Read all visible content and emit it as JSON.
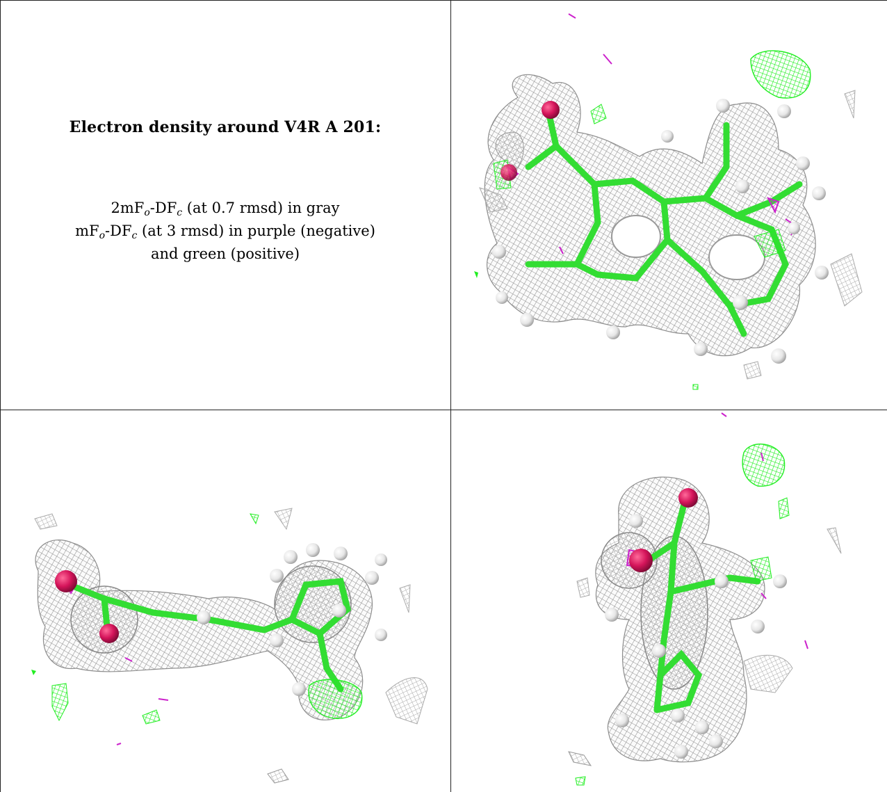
{
  "caption": {
    "title": "Electron density around V4R A 201:",
    "line1": {
      "pre": "2mF",
      "sub1": "o",
      "mid": "-DF",
      "sub2": "c",
      "post": " (at 0.7 rmsd) in gray"
    },
    "line2": {
      "pre": "mF",
      "sub1": "o",
      "mid": "-DF",
      "sub2": "c",
      "post": " (at 3 rmsd) in purple (negative)"
    },
    "line3": "and green (positive)"
  },
  "colors": {
    "mesh_gray": "#9a9a9a",
    "mesh_green": "#22ee22",
    "mesh_purple": "#cc22cc",
    "oxygen": "#d4145a",
    "hydrogen": "#f0f0f0",
    "bond": "#33dd33",
    "grid_line": "#222222"
  },
  "panels": [
    {
      "name": "top-right-view",
      "orientation": "front"
    },
    {
      "name": "bottom-left-view",
      "orientation": "side"
    },
    {
      "name": "bottom-right-view",
      "orientation": "end"
    }
  ]
}
